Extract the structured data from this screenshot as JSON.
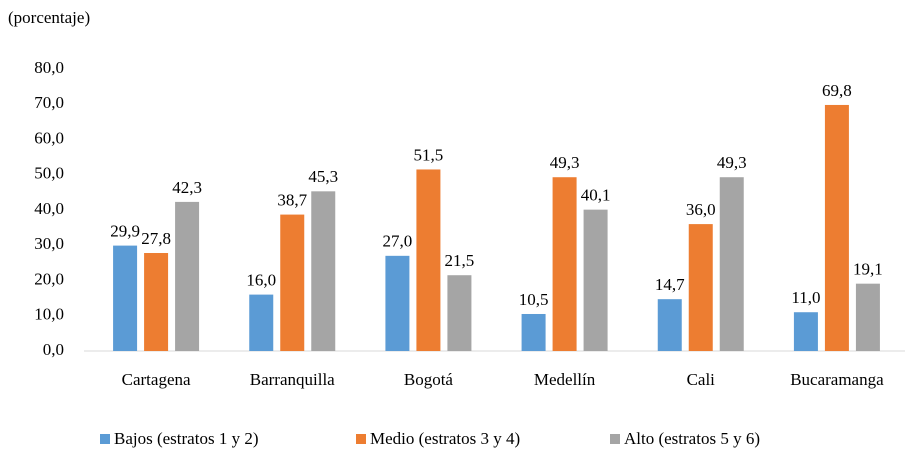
{
  "chart_data": {
    "type": "bar",
    "subtitle": "(porcentaje)",
    "categories": [
      "Cartagena",
      "Barranquilla",
      "Bogotá",
      "Medellín",
      "Cali",
      "Bucaramanga"
    ],
    "series": [
      {
        "name": "Bajos (estratos 1 y 2)",
        "color": "#5b9bd5",
        "values": [
          29.9,
          16.0,
          27.0,
          10.5,
          14.7,
          11.0
        ],
        "value_labels": [
          "29,9",
          "16,0",
          "27,0",
          "10,5",
          "14,7",
          "11,0"
        ]
      },
      {
        "name": "Medio (estratos 3 y 4)",
        "color": "#ed7d31",
        "values": [
          27.8,
          38.7,
          51.5,
          49.3,
          36.0,
          69.8
        ],
        "value_labels": [
          "27,8",
          "38,7",
          "51,5",
          "49,3",
          "36,0",
          "69,8"
        ]
      },
      {
        "name": "Alto (estratos 5 y 6)",
        "color": "#a5a5a5",
        "values": [
          42.3,
          45.3,
          21.5,
          40.1,
          49.3,
          19.1
        ],
        "value_labels": [
          "42,3",
          "45,3",
          "21,5",
          "40,1",
          "49,3",
          "19,1"
        ]
      }
    ],
    "ylim": [
      0,
      80
    ],
    "yticks": [
      {
        "value": 0,
        "label": "0,0"
      },
      {
        "value": 10,
        "label": "10,0"
      },
      {
        "value": 20,
        "label": "20,0"
      },
      {
        "value": 30,
        "label": "30,0"
      },
      {
        "value": 40,
        "label": "40,0"
      },
      {
        "value": 50,
        "label": "50,0"
      },
      {
        "value": 60,
        "label": "60,0"
      },
      {
        "value": 70,
        "label": "70,0"
      },
      {
        "value": 80,
        "label": "80,0"
      }
    ],
    "grid": false,
    "legend": "bottom"
  }
}
